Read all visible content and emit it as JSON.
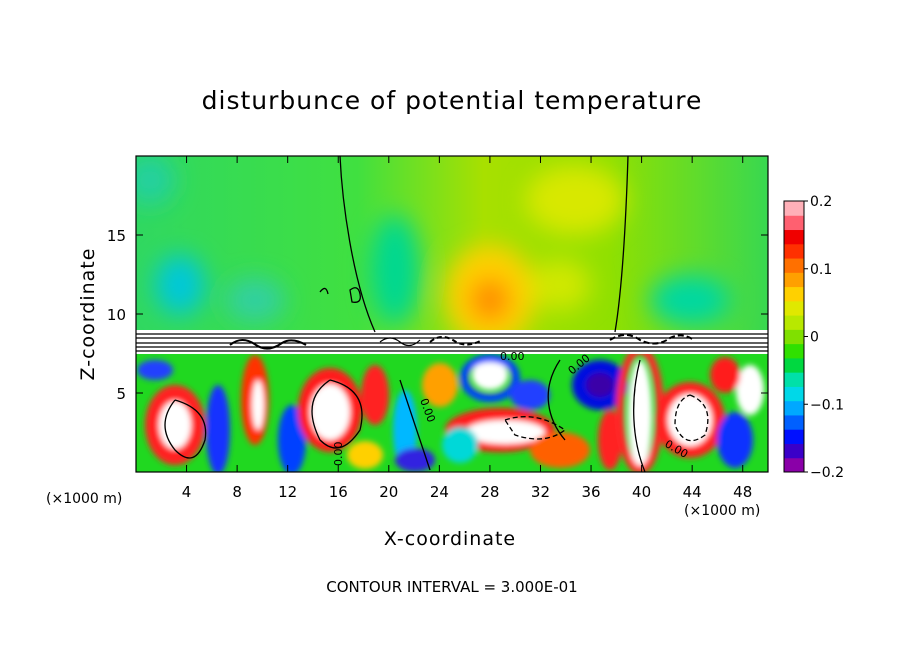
{
  "chart_data": {
    "type": "heatmap",
    "title": "disturbunce of potential temperature",
    "xlabel": "X-coordinate",
    "ylabel": "Z-coordinate",
    "x_unit": "(×1000 m)",
    "x_ticks": [
      "4",
      "8",
      "12",
      "16",
      "20",
      "24",
      "28",
      "32",
      "36",
      "40",
      "44",
      "48"
    ],
    "y_ticks": [
      "5",
      "10",
      "15"
    ],
    "xlim": [
      0,
      50
    ],
    "ylim": [
      0,
      20
    ],
    "colorbar": {
      "range": [
        -0.2,
        0.2
      ],
      "labels": [
        "0.2",
        "0.1",
        "0",
        "−0.1",
        "−0.2"
      ],
      "colors": [
        "#8a00a8",
        "#3a00c8",
        "#0010ff",
        "#0060ff",
        "#00a8ff",
        "#00d8e8",
        "#00e0a8",
        "#00d840",
        "#30e000",
        "#80e000",
        "#b8e800",
        "#e0e800",
        "#ffd000",
        "#ffa000",
        "#ff7000",
        "#ff3000",
        "#f00000",
        "#ff6070",
        "#ffb0b8"
      ]
    },
    "contour_labels": [
      "0.00",
      "0.00",
      "0.00",
      "0.00",
      "0.00"
    ],
    "footer": "CONTOUR INTERVAL = 3.000E-01"
  }
}
